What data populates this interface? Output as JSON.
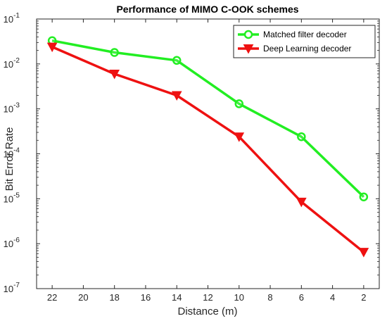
{
  "chart_data": {
    "type": "line",
    "title": "Performance of MIMO C-OOK schemes",
    "xlabel": "Distance (m)",
    "ylabel": "Bit Error Rate",
    "x_reversed": true,
    "xlim": [
      23,
      1
    ],
    "xticks": [
      22,
      20,
      18,
      16,
      14,
      12,
      10,
      8,
      6,
      4,
      2
    ],
    "y_scale": "log",
    "ylim": [
      1e-07,
      0.1
    ],
    "yticks": [
      {
        "value": 1e-07,
        "base": "10",
        "exp": "-7"
      },
      {
        "value": 1e-06,
        "base": "10",
        "exp": "-6"
      },
      {
        "value": 1e-05,
        "base": "10",
        "exp": "-5"
      },
      {
        "value": 0.0001,
        "base": "10",
        "exp": "-4"
      },
      {
        "value": 0.001,
        "base": "10",
        "exp": "-3"
      },
      {
        "value": 0.01,
        "base": "10",
        "exp": "-2"
      },
      {
        "value": 0.1,
        "base": "10",
        "exp": "-1"
      }
    ],
    "grid": false,
    "legend_position": "top-right",
    "series": [
      {
        "name": "Matched filter decoder",
        "color": "#22ee22",
        "marker": "circle",
        "x": [
          22,
          18,
          14,
          10,
          6,
          2
        ],
        "y": [
          0.033,
          0.018,
          0.012,
          0.0013,
          0.00024,
          1.1e-05
        ]
      },
      {
        "name": "Deep Learning decoder",
        "color": "#ee1111",
        "marker": "triangle-down",
        "x": [
          22,
          18,
          14,
          10,
          6,
          2
        ],
        "y": [
          0.024,
          0.006,
          0.002,
          0.00024,
          8.5e-06,
          6.5e-07
        ]
      }
    ]
  }
}
